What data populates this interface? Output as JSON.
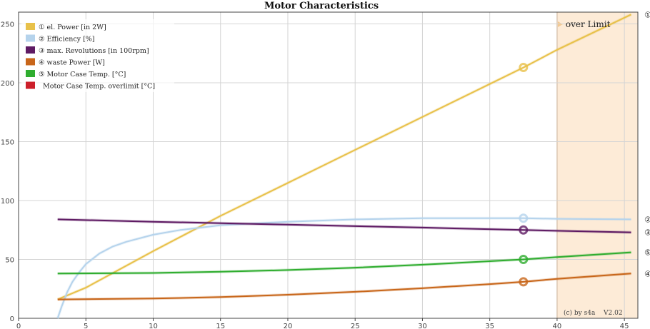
{
  "chart_data": {
    "type": "line",
    "title": "Motor Characteristics",
    "xlabel": "",
    "ylabel": "",
    "xlim": [
      0,
      46
    ],
    "ylim": [
      0,
      260
    ],
    "x_ticks": [
      0,
      5,
      10,
      15,
      20,
      25,
      30,
      35,
      40,
      45
    ],
    "y_ticks": [
      0,
      50,
      100,
      150,
      200,
      250
    ],
    "grid": true,
    "legend_position": "top-left",
    "marker_x": 37.5,
    "over_limit": {
      "label": "over Limit",
      "x_start": 40,
      "x_end": 45.5,
      "color": "#fdebd7",
      "line_color": "#e8b07a"
    },
    "credit": "(c) by s4a",
    "version": "V2.02",
    "series": [
      {
        "legend": "① el. Power [in 2W]",
        "end_label": "①",
        "color": "#e8c14a",
        "x": [
          2.9,
          5,
          10,
          15,
          20,
          25,
          30,
          35,
          37.5,
          40,
          45.5
        ],
        "y": [
          16,
          26,
          57,
          87,
          115,
          143,
          171,
          199,
          213,
          228,
          258
        ]
      },
      {
        "legend": "② Efficiency [%]",
        "end_label": "②",
        "color": "#b5d3ec",
        "x": [
          2.9,
          3.2,
          3.6,
          4.0,
          4.5,
          5,
          6,
          7,
          8,
          10,
          12,
          15,
          20,
          25,
          30,
          35,
          37.5,
          40,
          45.5
        ],
        "y": [
          0,
          10,
          22,
          31,
          39,
          46,
          55,
          61,
          65,
          71,
          75,
          79,
          82,
          84,
          85,
          85,
          85,
          84.5,
          84
        ]
      },
      {
        "legend": "③ max. Revolutions [in 100rpm]",
        "end_label": "③",
        "color": "#5e1a63",
        "x": [
          2.9,
          10,
          20,
          30,
          37.5,
          45.5
        ],
        "y": [
          84,
          82,
          79.5,
          77,
          75,
          73
        ]
      },
      {
        "legend": "④ waste Power [W]",
        "end_label": "④",
        "color": "#c8661a",
        "x": [
          2.9,
          10,
          15,
          20,
          25,
          30,
          35,
          37.5,
          40,
          45.5
        ],
        "y": [
          16,
          16.8,
          18,
          20,
          22.5,
          25.5,
          29,
          31,
          33.5,
          38
        ]
      },
      {
        "legend": "⑤ Motor Case Temp. [°C]",
        "end_label": "⑤",
        "color": "#2fad2f",
        "x": [
          2.9,
          10,
          15,
          20,
          25,
          30,
          35,
          37.5,
          40,
          45.5
        ],
        "y": [
          38,
          38.5,
          39.5,
          41,
          43,
          45.5,
          48.5,
          50,
          52,
          56
        ]
      },
      {
        "legend": "Motor Case Temp. overlimit [°C]",
        "end_label": "",
        "color": "#cc1f2a",
        "x": [],
        "y": []
      }
    ]
  }
}
